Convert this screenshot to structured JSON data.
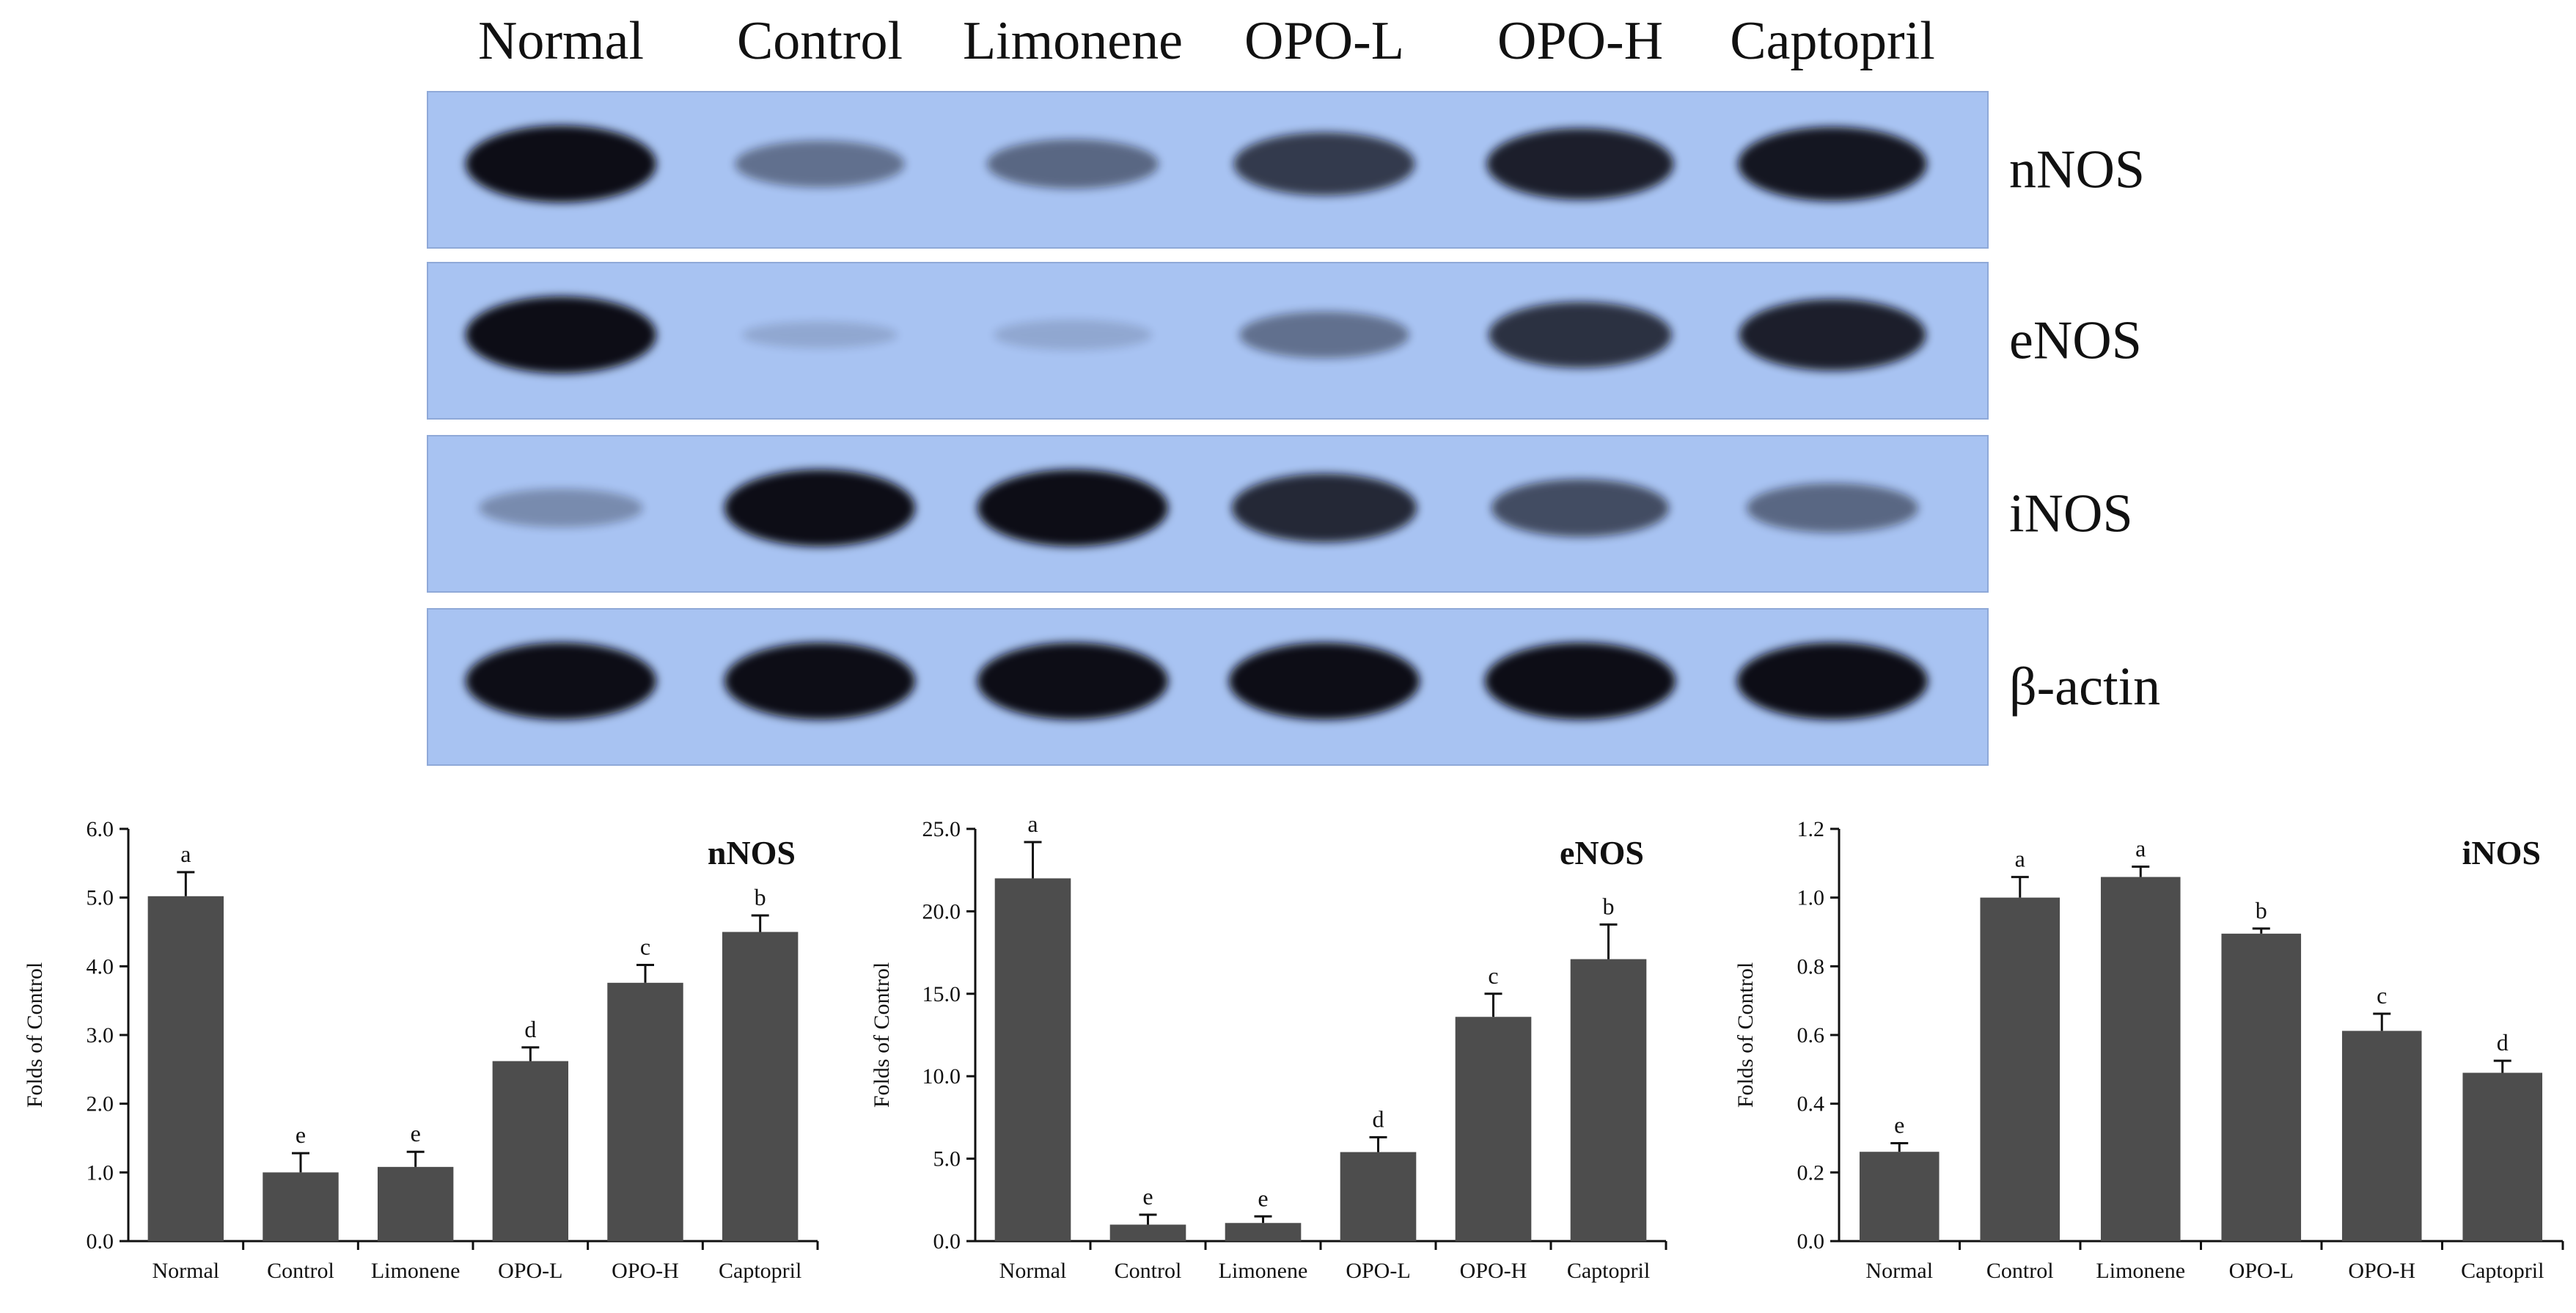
{
  "blot": {
    "lanes": [
      "Normal",
      "Control",
      "Limonene",
      "OPO-L",
      "OPO-H",
      "Captopril"
    ],
    "rows": [
      {
        "protein": "nNOS",
        "intensities": [
          1.0,
          0.45,
          0.5,
          0.75,
          0.9,
          0.95
        ]
      },
      {
        "protein": "eNOS",
        "intensities": [
          1.0,
          0.08,
          0.15,
          0.45,
          0.8,
          0.9
        ]
      },
      {
        "protein": "iNOS",
        "intensities": [
          0.3,
          1.0,
          1.0,
          0.85,
          0.65,
          0.5
        ]
      },
      {
        "protein": "β-actin",
        "intensities": [
          1.0,
          1.0,
          1.0,
          1.0,
          1.0,
          1.0
        ]
      }
    ],
    "colors": {
      "membrane": "#a8c3f2",
      "band": "#0a0a14"
    }
  },
  "chart_data": [
    {
      "type": "bar",
      "title": "nNOS",
      "ylabel": "Folds of Control",
      "categories": [
        "Normal",
        "Control",
        "Limonene",
        "OPO-L",
        "OPO-H",
        "Captopril"
      ],
      "values": [
        5.02,
        1.0,
        1.08,
        2.62,
        3.76,
        4.5
      ],
      "errors": [
        0.35,
        0.28,
        0.22,
        0.2,
        0.26,
        0.24
      ],
      "letters": [
        "a",
        "e",
        "e",
        "d",
        "c",
        "b"
      ],
      "ylim": [
        0,
        6
      ],
      "yticks": [
        "0.0",
        "1.0",
        "2.0",
        "3.0",
        "4.0",
        "5.0",
        "6.0"
      ],
      "bar_color": "#4d4d4d"
    },
    {
      "type": "bar",
      "title": "eNOS",
      "ylabel": "Folds of Control",
      "categories": [
        "Normal",
        "Control",
        "Limonene",
        "OPO-L",
        "OPO-H",
        "Captopril"
      ],
      "values": [
        22.0,
        1.0,
        1.1,
        5.4,
        13.6,
        17.1
      ],
      "errors": [
        2.2,
        0.6,
        0.4,
        0.9,
        1.4,
        2.1
      ],
      "letters": [
        "a",
        "e",
        "e",
        "d",
        "c",
        "b"
      ],
      "ylim": [
        0,
        25
      ],
      "yticks": [
        "0.0",
        "5.0",
        "10.0",
        "15.0",
        "20.0",
        "25.0"
      ],
      "bar_color": "#4d4d4d"
    },
    {
      "type": "bar",
      "title": "iNOS",
      "ylabel": "Folds of Control",
      "categories": [
        "Normal",
        "Control",
        "Limonene",
        "OPO-L",
        "OPO-H",
        "Captopril"
      ],
      "values": [
        0.26,
        1.0,
        1.06,
        0.895,
        0.612,
        0.49
      ],
      "errors": [
        0.025,
        0.06,
        0.03,
        0.015,
        0.05,
        0.035
      ],
      "letters": [
        "e",
        "a",
        "a",
        "b",
        "c",
        "d"
      ],
      "ylim": [
        0,
        1.2
      ],
      "yticks": [
        "0.0",
        "0.2",
        "0.4",
        "0.6",
        "0.8",
        "1.0",
        "1.2"
      ],
      "bar_color": "#4d4d4d"
    }
  ]
}
